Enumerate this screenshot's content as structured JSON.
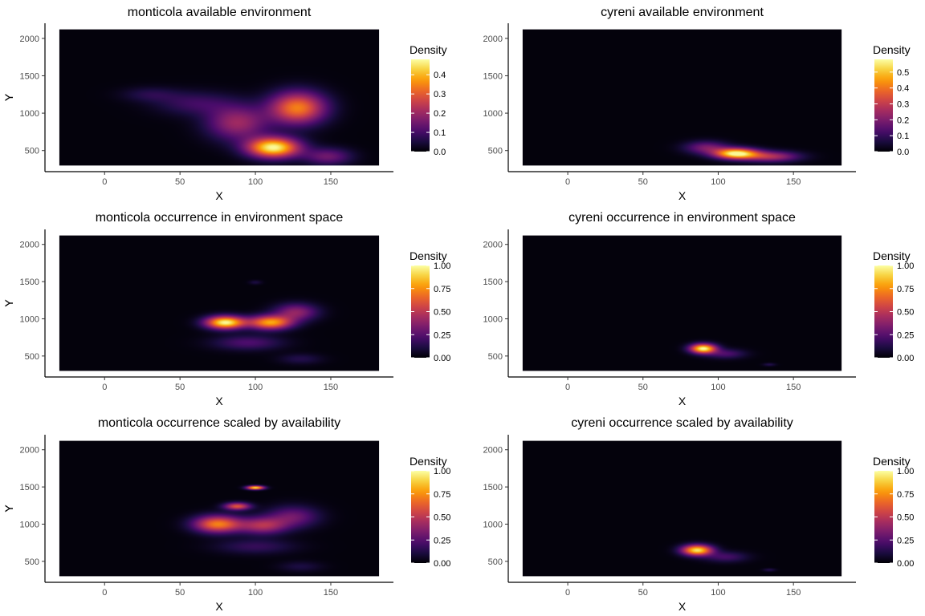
{
  "colormap": {
    "name": "inferno",
    "stops": [
      "#000004",
      "#1b0c41",
      "#4a0c6b",
      "#781c6d",
      "#a52c60",
      "#cf4446",
      "#ed6925",
      "#fb9b06",
      "#f7d13d",
      "#fcffa4"
    ]
  },
  "colors": {
    "axis": "#000000",
    "tick_text": "#4d4d4d",
    "title": "#000000",
    "background": "#ffffff"
  },
  "chart_data": [
    {
      "type": "heatmap",
      "title": "monticola available environment",
      "xlabel": "X",
      "ylabel": "Y",
      "xlim": [
        -30,
        182
      ],
      "ylim": [
        300,
        2120
      ],
      "xticks": [
        0,
        50,
        100,
        150
      ],
      "yticks": [
        500,
        1000,
        1500,
        2000
      ],
      "legend": {
        "title": "Density",
        "breaks": [
          "0.0",
          "0.1",
          "0.2",
          "0.3",
          "0.4"
        ],
        "break_values": [
          0,
          0.1,
          0.2,
          0.3,
          0.4
        ],
        "max": 0.48,
        "placement": "right"
      },
      "density_peaks": [
        {
          "x": 112,
          "y": 540,
          "sx": 12,
          "sy": 95,
          "w": 1.0
        },
        {
          "x": 128,
          "y": 1070,
          "sx": 13,
          "sy": 150,
          "w": 0.72
        },
        {
          "x": 88,
          "y": 870,
          "sx": 14,
          "sy": 160,
          "w": 0.42
        },
        {
          "x": 148,
          "y": 420,
          "sx": 11,
          "sy": 80,
          "w": 0.3
        },
        {
          "x": 60,
          "y": 1130,
          "sx": 18,
          "sy": 110,
          "w": 0.18
        },
        {
          "x": 30,
          "y": 1250,
          "sx": 13,
          "sy": 70,
          "w": 0.12
        }
      ]
    },
    {
      "type": "heatmap",
      "title": "cyreni available environment",
      "xlabel": "X",
      "ylabel": "Y",
      "xlim": [
        -30,
        182
      ],
      "ylim": [
        300,
        2120
      ],
      "xticks": [
        0,
        50,
        100,
        150
      ],
      "yticks": [
        500,
        1000,
        1500,
        2000
      ],
      "legend": {
        "title": "Density",
        "breaks": [
          "0.0",
          "0.1",
          "0.2",
          "0.3",
          "0.4",
          "0.5"
        ],
        "break_values": [
          0,
          0.1,
          0.2,
          0.3,
          0.4,
          0.5
        ],
        "max": 0.58,
        "placement": "right"
      },
      "density_peaks": [
        {
          "x": 112,
          "y": 460,
          "sx": 10,
          "sy": 50,
          "w": 1.0
        },
        {
          "x": 135,
          "y": 420,
          "sx": 13,
          "sy": 50,
          "w": 0.45
        },
        {
          "x": 92,
          "y": 540,
          "sx": 10,
          "sy": 60,
          "w": 0.32
        }
      ]
    },
    {
      "type": "heatmap",
      "title": "monticola occurrence in environment space",
      "xlabel": "X",
      "ylabel": "Y",
      "xlim": [
        -30,
        182
      ],
      "ylim": [
        300,
        2120
      ],
      "xticks": [
        0,
        50,
        100,
        150
      ],
      "yticks": [
        500,
        1000,
        1500,
        2000
      ],
      "legend": {
        "title": "Density",
        "breaks": [
          "0.00",
          "0.25",
          "0.50",
          "0.75",
          "1.00"
        ],
        "break_values": [
          0,
          0.25,
          0.5,
          0.75,
          1.0
        ],
        "max": 1.0,
        "placement": "right"
      },
      "density_peaks": [
        {
          "x": 80,
          "y": 950,
          "sx": 9,
          "sy": 60,
          "w": 1.0
        },
        {
          "x": 110,
          "y": 950,
          "sx": 10,
          "sy": 65,
          "w": 0.8
        },
        {
          "x": 127,
          "y": 1090,
          "sx": 10,
          "sy": 80,
          "w": 0.38
        },
        {
          "x": 95,
          "y": 680,
          "sx": 16,
          "sy": 70,
          "w": 0.22
        },
        {
          "x": 130,
          "y": 460,
          "sx": 10,
          "sy": 50,
          "w": 0.12
        },
        {
          "x": 100,
          "y": 1490,
          "sx": 3,
          "sy": 20,
          "w": 0.1
        }
      ]
    },
    {
      "type": "heatmap",
      "title": "cyreni occurrence in environment space",
      "xlabel": "X",
      "ylabel": "Y",
      "xlim": [
        -30,
        182
      ],
      "ylim": [
        300,
        2120
      ],
      "xticks": [
        0,
        50,
        100,
        150
      ],
      "yticks": [
        500,
        1000,
        1500,
        2000
      ],
      "legend": {
        "title": "Density",
        "breaks": [
          "0.00",
          "0.25",
          "0.50",
          "0.75",
          "1.00"
        ],
        "break_values": [
          0,
          0.25,
          0.5,
          0.75,
          1.0
        ],
        "max": 1.0,
        "placement": "right"
      },
      "density_peaks": [
        {
          "x": 90,
          "y": 600,
          "sx": 6,
          "sy": 45,
          "w": 1.0
        },
        {
          "x": 105,
          "y": 530,
          "sx": 9,
          "sy": 45,
          "w": 0.22
        },
        {
          "x": 134,
          "y": 385,
          "sx": 3,
          "sy": 15,
          "w": 0.12
        }
      ]
    },
    {
      "type": "heatmap",
      "title": "monticola occurrence scaled by availability",
      "xlabel": "X",
      "ylabel": "Y",
      "xlim": [
        -30,
        182
      ],
      "ylim": [
        300,
        2120
      ],
      "xticks": [
        0,
        50,
        100,
        150
      ],
      "yticks": [
        500,
        1000,
        1500,
        2000
      ],
      "legend": {
        "title": "Density",
        "breaks": [
          "0.00",
          "0.25",
          "0.50",
          "0.75",
          "1.00"
        ],
        "break_values": [
          0,
          0.25,
          0.5,
          0.75,
          1.0
        ],
        "max": 1.0,
        "placement": "right"
      },
      "density_peaks": [
        {
          "x": 75,
          "y": 1000,
          "sx": 11,
          "sy": 80,
          "w": 0.72
        },
        {
          "x": 100,
          "y": 1490,
          "sx": 4,
          "sy": 18,
          "w": 0.95
        },
        {
          "x": 88,
          "y": 1240,
          "sx": 6,
          "sy": 35,
          "w": 0.6
        },
        {
          "x": 105,
          "y": 980,
          "sx": 11,
          "sy": 80,
          "w": 0.45
        },
        {
          "x": 125,
          "y": 1100,
          "sx": 12,
          "sy": 100,
          "w": 0.3
        },
        {
          "x": 100,
          "y": 700,
          "sx": 18,
          "sy": 70,
          "w": 0.16
        },
        {
          "x": 130,
          "y": 430,
          "sx": 10,
          "sy": 50,
          "w": 0.1
        }
      ]
    },
    {
      "type": "heatmap",
      "title": "cyreni occurrence scaled by availability",
      "xlabel": "X",
      "ylabel": "Y",
      "xlim": [
        -30,
        182
      ],
      "ylim": [
        300,
        2120
      ],
      "xticks": [
        0,
        50,
        100,
        150
      ],
      "yticks": [
        500,
        1000,
        1500,
        2000
      ],
      "legend": {
        "title": "Density",
        "breaks": [
          "0.00",
          "0.25",
          "0.50",
          "0.75",
          "1.00"
        ],
        "break_values": [
          0,
          0.25,
          0.5,
          0.75,
          1.0
        ],
        "max": 1.0,
        "placement": "right"
      },
      "density_peaks": [
        {
          "x": 86,
          "y": 650,
          "sx": 7,
          "sy": 50,
          "w": 0.95
        },
        {
          "x": 105,
          "y": 560,
          "sx": 10,
          "sy": 50,
          "w": 0.2
        },
        {
          "x": 134,
          "y": 385,
          "sx": 3,
          "sy": 15,
          "w": 0.12
        }
      ]
    }
  ]
}
